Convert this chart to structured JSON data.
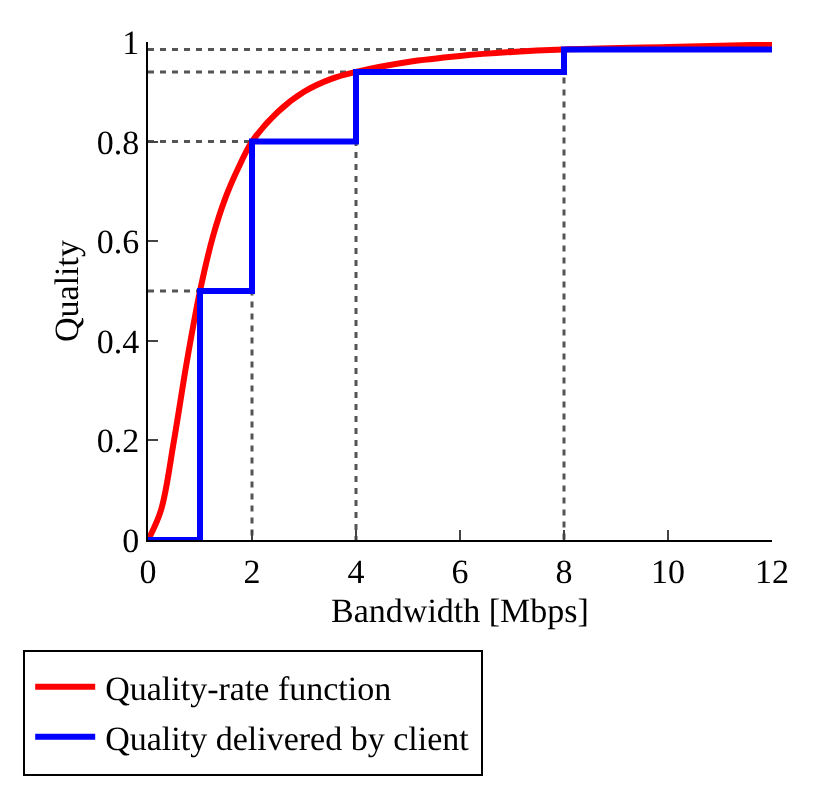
{
  "chart_data": {
    "type": "line",
    "xlabel": "Bandwidth [Mbps]",
    "ylabel": "Quality",
    "xlim": [
      0,
      12
    ],
    "xticks": [
      0,
      2,
      4,
      6,
      8,
      10,
      12
    ],
    "ylim": [
      0,
      1
    ],
    "yticks": [
      0,
      0.2,
      0.4,
      0.6,
      0.8,
      1
    ],
    "legend": "bottom",
    "marker": "none",
    "series": [
      {
        "name": "Quality-rate function",
        "color": "#ff0000",
        "x": [
          0,
          0.25,
          0.5,
          0.75,
          1,
          1.25,
          1.5,
          1.75,
          2,
          2.5,
          3,
          3.5,
          4,
          5,
          6,
          7,
          8,
          10,
          12
        ],
        "values": [
          0,
          0.06,
          0.2,
          0.36,
          0.5,
          0.61,
          0.69,
          0.75,
          0.8,
          0.86,
          0.9,
          0.925,
          0.94,
          0.96,
          0.972,
          0.98,
          0.985,
          0.99,
          0.995
        ]
      },
      {
        "name": "Quality delivered by client",
        "color": "#0000ff",
        "type": "step",
        "x": [
          0,
          1,
          2,
          4,
          8,
          12
        ],
        "values": [
          0,
          0.5,
          0.8,
          0.94,
          0.985,
          0.985
        ]
      },
      {
        "color": "#555555",
        "line_style": "dotted",
        "x": [
          0,
          1,
          1,
          null,
          0,
          2,
          2,
          null,
          0,
          4,
          4,
          null,
          0,
          8,
          8
        ],
        "values": [
          0.5,
          0.5,
          0,
          null,
          0.8,
          0.8,
          0,
          null,
          0.94,
          0.94,
          0,
          null,
          0.985,
          0.985,
          0
        ]
      }
    ]
  }
}
